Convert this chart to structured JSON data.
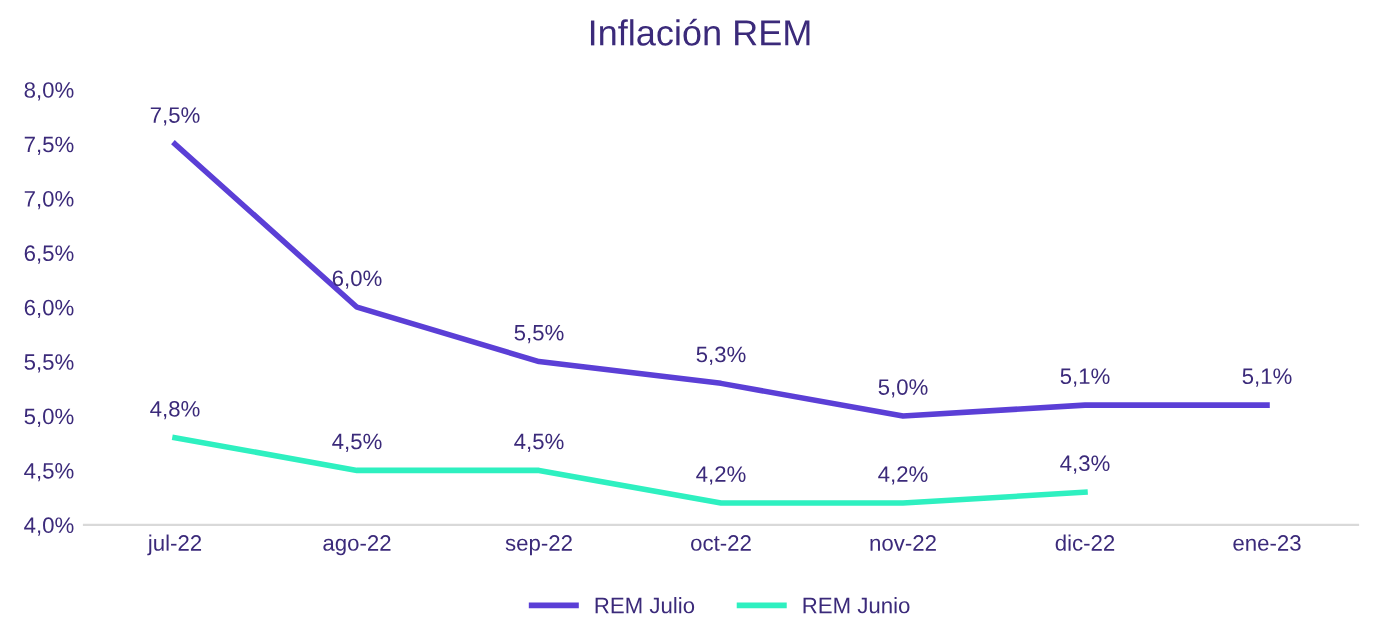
{
  "chart_data": {
    "type": "line",
    "title": "Inflación REM",
    "categories": [
      "jul-22",
      "ago-22",
      "sep-22",
      "oct-22",
      "nov-22",
      "dic-22",
      "ene-23"
    ],
    "series": [
      {
        "name": "REM Julio",
        "color": "#5b3fd6",
        "values": [
          7.5,
          6.0,
          5.5,
          5.3,
          5.0,
          5.1,
          5.1
        ],
        "value_labels": [
          "7,5%",
          "6,0%",
          "5,5%",
          "5,3%",
          "5,0%",
          "5,1%",
          "5,1%"
        ]
      },
      {
        "name": "REM Junio",
        "color": "#2ef0c0",
        "values": [
          4.8,
          4.5,
          4.5,
          4.2,
          4.2,
          4.3,
          null
        ],
        "value_labels": [
          "4,8%",
          "4,5%",
          "4,5%",
          "4,2%",
          "4,2%",
          "4,3%",
          null
        ]
      }
    ],
    "ylim": [
      4.0,
      8.0
    ],
    "yticks": [
      {
        "value": 4.0,
        "label": "4,0%"
      },
      {
        "value": 4.5,
        "label": "4,5%"
      },
      {
        "value": 5.0,
        "label": "5,0%"
      },
      {
        "value": 5.5,
        "label": "5,5%"
      },
      {
        "value": 6.0,
        "label": "6,0%"
      },
      {
        "value": 6.5,
        "label": "6,5%"
      },
      {
        "value": 7.0,
        "label": "7,0%"
      },
      {
        "value": 7.5,
        "label": "7,5%"
      },
      {
        "value": 8.0,
        "label": "8,0%"
      }
    ],
    "grid": false,
    "legend": "bottom",
    "marker": "none",
    "line_style": "solid"
  }
}
